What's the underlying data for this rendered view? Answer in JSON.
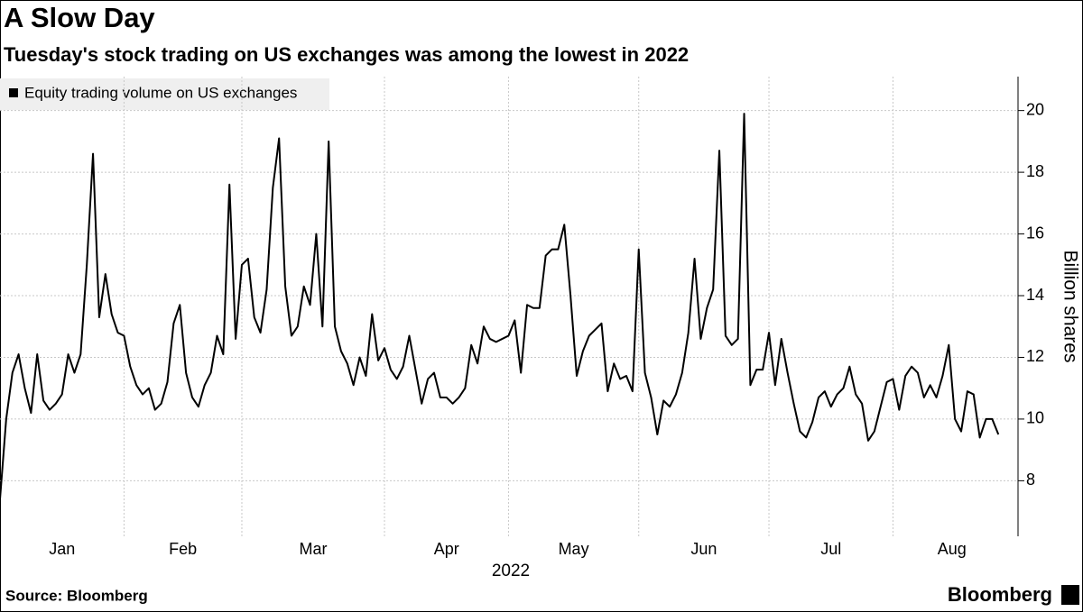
{
  "chart_data": {
    "type": "line",
    "title": "A Slow Day",
    "subtitle": "Tuesday's stock trading on US exchanges was among the lowest in 2022",
    "x_label": "2022",
    "y_label": "Billion shares",
    "source": "Source: Bloomberg",
    "brand": "Bloomberg",
    "grid": true,
    "legend": "top-left",
    "series": [
      {
        "name": "Equity trading volume on US exchanges",
        "color": "#000000",
        "values": [
          7.4,
          10.0,
          11.5,
          12.1,
          11.0,
          10.2,
          12.1,
          10.6,
          10.3,
          10.5,
          10.8,
          12.1,
          11.5,
          12.1,
          15.0,
          18.6,
          13.3,
          14.7,
          13.4,
          12.8,
          12.7,
          11.7,
          11.1,
          10.8,
          11.0,
          10.3,
          10.5,
          11.2,
          13.1,
          13.7,
          11.5,
          10.7,
          10.4,
          11.1,
          11.5,
          12.7,
          12.1,
          17.6,
          12.6,
          15.0,
          15.2,
          13.3,
          12.8,
          14.2,
          17.5,
          19.1,
          14.3,
          12.7,
          13.0,
          14.3,
          13.7,
          16.0,
          13.0,
          19.0,
          13.0,
          12.2,
          11.8,
          11.1,
          12.0,
          11.4,
          13.4,
          11.9,
          12.3,
          11.6,
          11.3,
          11.7,
          12.7,
          11.6,
          10.5,
          11.3,
          11.5,
          10.7,
          10.7,
          10.5,
          10.7,
          11.0,
          12.4,
          11.8,
          13.0,
          12.6,
          12.5,
          12.6,
          12.7,
          13.2,
          11.5,
          13.7,
          13.6,
          13.6,
          15.3,
          15.5,
          15.5,
          16.3,
          14.0,
          11.4,
          12.2,
          12.7,
          12.9,
          13.1,
          10.9,
          11.8,
          11.3,
          11.4,
          10.9,
          15.5,
          11.5,
          10.7,
          9.5,
          10.6,
          10.4,
          10.8,
          11.5,
          12.8,
          15.2,
          12.6,
          13.6,
          14.2,
          18.7,
          12.7,
          12.4,
          12.6,
          19.9,
          11.1,
          11.6,
          11.6,
          12.8,
          11.1,
          12.6,
          11.5,
          10.5,
          9.6,
          9.4,
          9.9,
          10.7,
          10.9,
          10.4,
          10.8,
          11.0,
          11.7,
          10.8,
          10.5,
          9.3,
          9.6,
          10.4,
          11.2,
          11.3,
          10.3,
          11.4,
          11.7,
          11.5,
          10.7,
          11.1,
          10.7,
          11.4,
          12.4,
          10.0,
          9.6,
          10.9,
          10.8,
          9.4,
          10.0,
          10.0,
          9.5
        ]
      }
    ],
    "xlim": [
      0,
      163
    ],
    "xticks": [
      {
        "value": 10,
        "label": "Jan"
      },
      {
        "value": 29.5,
        "label": "Feb"
      },
      {
        "value": 50.5,
        "label": "Mar"
      },
      {
        "value": 72,
        "label": "Apr"
      },
      {
        "value": 92.5,
        "label": "May"
      },
      {
        "value": 113.5,
        "label": "Jun"
      },
      {
        "value": 134,
        "label": "Jul"
      },
      {
        "value": 153.5,
        "label": "Aug"
      }
    ],
    "xgrid": [
      20,
      39,
      62,
      82,
      103,
      124,
      144
    ],
    "ylim": [
      6.2,
      21.1
    ],
    "yticks": [
      8,
      10,
      12,
      14,
      16,
      18,
      20
    ]
  }
}
